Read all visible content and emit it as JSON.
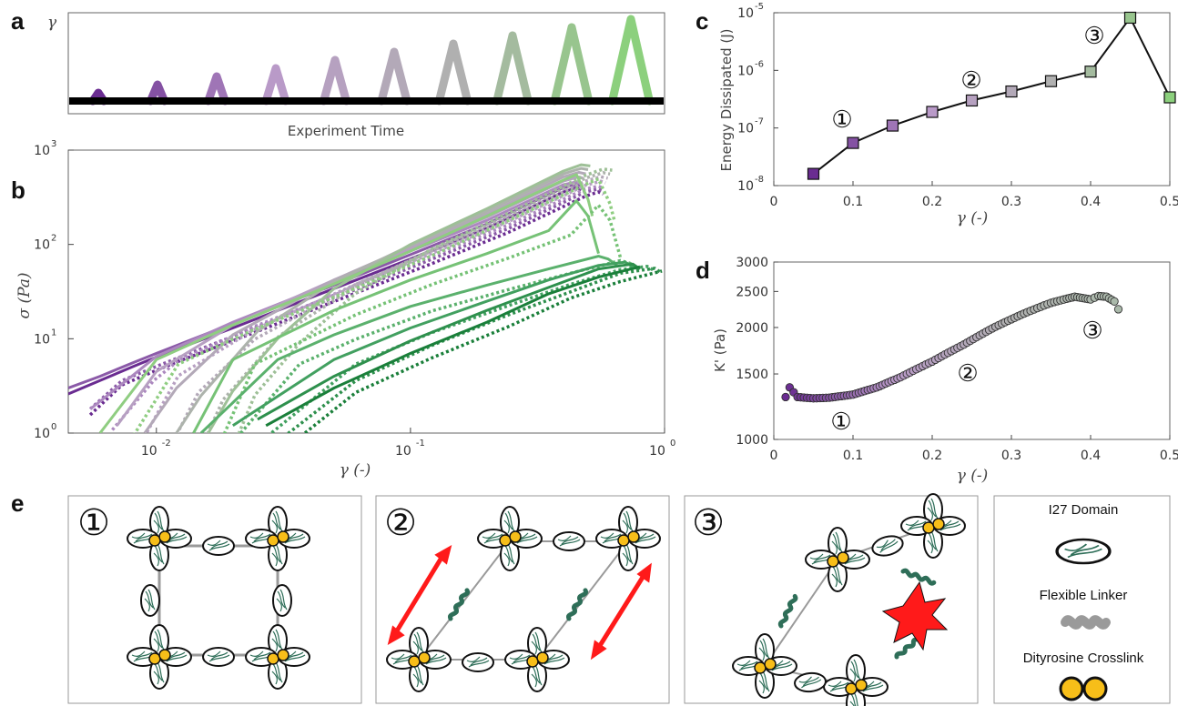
{
  "panels": {
    "a": "a",
    "b": "b",
    "c": "c",
    "d": "d",
    "e": "e"
  },
  "colors": {
    "purple_dark": "#6a2c91",
    "purple_light": "#b99ac8",
    "gray_mid": "#b0b0b0",
    "green_light": "#8cd07d",
    "green_mid": "#4aa768",
    "green_dark": "#1a7f3a",
    "marker_c_gray": "#aab9aa",
    "red": "#ff1a1a",
    "yellow": "#f7be19",
    "protein": "#2e6e58",
    "linker": "#9a9a9a"
  },
  "chart_data": [
    {
      "id": "a",
      "type": "line",
      "ylabel": "γ",
      "xlabel": "Experiment Time",
      "pulses": [
        0.05,
        0.1,
        0.15,
        0.2,
        0.25,
        0.3,
        0.35,
        0.4,
        0.45,
        0.5
      ]
    },
    {
      "id": "b",
      "type": "line",
      "xscale": "log",
      "yscale": "log",
      "xlim": [
        0.0045,
        1
      ],
      "ylim": [
        1,
        1000
      ],
      "xlabel": "γ (-)",
      "ylabel": "σ (Pa)",
      "xticks": [
        "10",
        "10",
        "10"
      ],
      "xtick_exps": [
        "-2",
        "-1",
        "0"
      ],
      "yticks": [
        "10",
        "10",
        "10",
        "10"
      ],
      "ytick_exps": [
        "0",
        "1",
        "2",
        "3"
      ],
      "series": [
        {
          "amp": 0.05,
          "x": [
            0.0045,
            0.006,
            0.008,
            0.01,
            0.02,
            0.05,
            0.1,
            0.2,
            0.4,
            0.45,
            0.47
          ],
          "y": [
            2.6,
            3.6,
            5.0,
            6.4,
            13,
            34,
            70,
            150,
            360,
            400,
            380
          ]
        },
        {
          "amp": 0.1,
          "x": [
            0.0045,
            0.006,
            0.008,
            0.01,
            0.02,
            0.05,
            0.1,
            0.2,
            0.4,
            0.45,
            0.47
          ],
          "y": [
            3.0,
            4.0,
            5.5,
            7.0,
            14.5,
            37,
            78,
            165,
            400,
            430,
            410
          ]
        },
        {
          "amp": 0.15,
          "x": [
            0.0055,
            0.008,
            0.01,
            0.02,
            0.05,
            0.1,
            0.2,
            0.4,
            0.45,
            0.47
          ],
          "y": [
            1.8,
            4.0,
            6.5,
            15,
            40,
            85,
            180,
            430,
            460,
            440
          ]
        },
        {
          "amp": 0.2,
          "x": [
            0.007,
            0.01,
            0.02,
            0.05,
            0.1,
            0.2,
            0.4,
            0.46,
            0.48
          ],
          "y": [
            1.2,
            4.5,
            14,
            42,
            90,
            195,
            470,
            520,
            500
          ]
        },
        {
          "amp": 0.25,
          "x": [
            0.009,
            0.012,
            0.02,
            0.05,
            0.1,
            0.2,
            0.4,
            0.46,
            0.49
          ],
          "y": [
            1.0,
            3.0,
            11,
            42,
            95,
            210,
            520,
            580,
            560
          ]
        },
        {
          "amp": 0.3,
          "x": [
            0.012,
            0.015,
            0.025,
            0.05,
            0.1,
            0.2,
            0.4,
            0.47,
            0.5
          ],
          "y": [
            1.0,
            2.5,
            12,
            40,
            98,
            225,
            560,
            640,
            620
          ]
        },
        {
          "amp": 0.35,
          "x": [
            0.016,
            0.02,
            0.03,
            0.05,
            0.1,
            0.2,
            0.4,
            0.47,
            0.51
          ],
          "y": [
            1.0,
            2.8,
            10,
            34,
            100,
            240,
            600,
            700,
            680
          ]
        },
        {
          "amp": 0.4,
          "x": [
            0.006,
            0.01,
            0.02,
            0.05,
            0.1,
            0.2,
            0.4,
            0.45,
            0.5,
            0.52
          ],
          "y": [
            1.0,
            6.0,
            14,
            38,
            85,
            200,
            480,
            550,
            300,
            200
          ]
        },
        {
          "amp": 0.45,
          "x": [
            0.014,
            0.02,
            0.05,
            0.1,
            0.2,
            0.35,
            0.45,
            0.5,
            0.55
          ],
          "y": [
            1.0,
            6.0,
            20,
            42,
            80,
            140,
            290,
            200,
            80
          ]
        },
        {
          "amp": 0.5,
          "x": [
            0.015,
            0.03,
            0.05,
            0.1,
            0.2,
            0.35,
            0.55,
            0.6,
            0.65
          ],
          "y": [
            1.0,
            6.0,
            11,
            22,
            37,
            55,
            75,
            70,
            60
          ]
        },
        {
          "amp": 0.55,
          "x": [
            0.02,
            0.05,
            0.1,
            0.2,
            0.35,
            0.55,
            0.7,
            0.75
          ],
          "y": [
            1.2,
            6.0,
            13,
            25,
            42,
            60,
            65,
            58
          ]
        },
        {
          "amp": 0.6,
          "x": [
            0.025,
            0.05,
            0.1,
            0.2,
            0.35,
            0.55,
            0.75,
            0.8
          ],
          "y": [
            1.4,
            4.0,
            9.5,
            20,
            35,
            55,
            62,
            55
          ]
        },
        {
          "amp": 0.65,
          "x": [
            0.027,
            0.05,
            0.1,
            0.2,
            0.35,
            0.55,
            0.8
          ],
          "y": [
            1.2,
            3.0,
            7.0,
            15,
            30,
            45,
            58
          ]
        }
      ]
    },
    {
      "id": "c",
      "type": "scatter",
      "xlabel": "γ (-)",
      "ylabel": "Energy Dissipated (J)",
      "yscale": "log",
      "xlim": [
        0,
        0.5
      ],
      "ylim": [
        1e-08,
        1e-05
      ],
      "xticks": [
        "0",
        "0.1",
        "0.2",
        "0.3",
        "0.4",
        "0.5"
      ],
      "yticks": [
        "10",
        "10",
        "10",
        "10"
      ],
      "ytick_exps": [
        "-8",
        "-7",
        "-6",
        "-5"
      ],
      "x": [
        0.05,
        0.1,
        0.15,
        0.2,
        0.25,
        0.3,
        0.35,
        0.4,
        0.45,
        0.5
      ],
      "y": [
        1.6e-08,
        5.5e-08,
        1.1e-07,
        1.9e-07,
        3e-07,
        4.3e-07,
        6.5e-07,
        9.5e-07,
        8.2e-06,
        3.4e-07
      ],
      "annotations": [
        "①",
        "②",
        "③"
      ]
    },
    {
      "id": "d",
      "type": "scatter",
      "xlabel": "γ (-)",
      "ylabel": "K' (Pa)",
      "yscale": "log",
      "xlim": [
        0,
        0.5
      ],
      "ylim": [
        1000,
        3000
      ],
      "xticks": [
        "0",
        "0.1",
        "0.2",
        "0.3",
        "0.4",
        "0.5"
      ],
      "yticks": [
        "1000",
        "1500",
        "2000",
        "2500",
        "3000"
      ],
      "x": [
        0.015,
        0.02,
        0.03,
        0.05,
        0.07,
        0.1,
        0.13,
        0.16,
        0.2,
        0.24,
        0.28,
        0.32,
        0.35,
        0.37,
        0.38,
        0.39,
        0.4,
        0.41,
        0.42,
        0.43,
        0.435
      ],
      "y": [
        1300,
        1380,
        1300,
        1290,
        1295,
        1320,
        1380,
        1470,
        1620,
        1800,
        2010,
        2200,
        2330,
        2390,
        2420,
        2400,
        2380,
        2430,
        2420,
        2350,
        2240
      ],
      "annotations": [
        "①",
        "②",
        "③"
      ]
    }
  ],
  "panel_e": {
    "boxes": [
      {
        "label": "①"
      },
      {
        "label": "②"
      },
      {
        "label": "③"
      }
    ],
    "legend": {
      "i27": "I27 Domain",
      "linker": "Flexible Linker",
      "crosslink": "Dityrosine Crosslink"
    }
  }
}
